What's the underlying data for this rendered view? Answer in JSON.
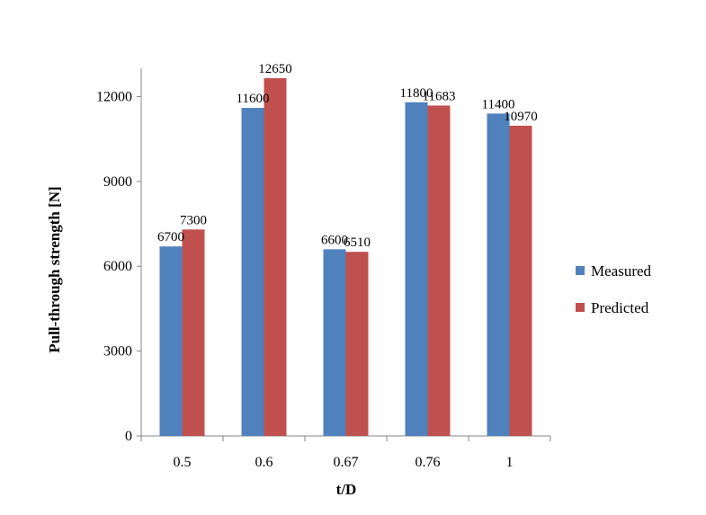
{
  "chart_data": {
    "type": "bar",
    "xlabel": "t/D",
    "ylabel": "Pull-through strength [N]",
    "categories": [
      "0.5",
      "0.6",
      "0.67",
      "0.76",
      "1"
    ],
    "series": [
      {
        "name": "Measured",
        "values": [
          6700,
          11600,
          6600,
          11800,
          11400
        ],
        "color": "#4f81bd"
      },
      {
        "name": "Predicted",
        "values": [
          7300,
          12650,
          6510,
          11683,
          10970
        ],
        "color": "#c0504d"
      }
    ],
    "data_labels": [
      [
        "6700",
        "11600",
        "6600",
        "11800",
        "11400"
      ],
      [
        "7300",
        "12650",
        "6510",
        "11683",
        "10970"
      ]
    ],
    "yticks": [
      0,
      3000,
      6000,
      9000,
      12000
    ],
    "ytick_labels": [
      "0",
      "3000",
      "6000",
      "9000",
      "12000"
    ],
    "ylim": [
      0,
      13000
    ],
    "legend_position": "right",
    "grid": false
  }
}
